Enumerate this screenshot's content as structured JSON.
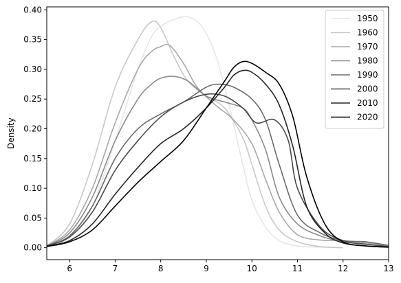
{
  "chart_data": {
    "type": "line",
    "title": "",
    "xlabel": "",
    "ylabel": "Density",
    "xlim": [
      5.5,
      13
    ],
    "ylim": [
      -0.02,
      0.405
    ],
    "xticks": [
      6,
      7,
      8,
      9,
      10,
      11,
      12,
      13
    ],
    "yticks": [
      0.0,
      0.05,
      0.1,
      0.15,
      0.2,
      0.25,
      0.3,
      0.35,
      0.4
    ],
    "grid": false,
    "legend_position": "top-right",
    "series": [
      {
        "name": "1950",
        "color": "#e6e6e6",
        "x": [
          5.5,
          6.0,
          6.5,
          7.0,
          7.5,
          7.8,
          8.0,
          8.3,
          8.6,
          8.9,
          9.2,
          9.5,
          9.8,
          10.0,
          10.3,
          10.6,
          11.0,
          11.5,
          12.0
        ],
        "y": [
          0.003,
          0.02,
          0.07,
          0.18,
          0.3,
          0.355,
          0.372,
          0.384,
          0.388,
          0.372,
          0.325,
          0.24,
          0.14,
          0.08,
          0.035,
          0.012,
          0.003,
          0.001,
          0.0
        ]
      },
      {
        "name": "1960",
        "color": "#c8c8c8",
        "x": [
          5.5,
          6.0,
          6.5,
          7.0,
          7.5,
          7.8,
          8.0,
          8.3,
          8.6,
          9.0,
          9.4,
          9.8,
          10.0,
          10.3,
          10.6,
          11.0,
          11.5,
          12.0
        ],
        "y": [
          0.003,
          0.04,
          0.14,
          0.27,
          0.35,
          0.38,
          0.37,
          0.32,
          0.28,
          0.255,
          0.235,
          0.185,
          0.14,
          0.07,
          0.03,
          0.01,
          0.002,
          0.0
        ]
      },
      {
        "name": "1970",
        "color": "#a8a8a8",
        "x": [
          5.5,
          6.0,
          6.5,
          7.0,
          7.5,
          7.8,
          8.0,
          8.2,
          8.5,
          8.8,
          9.2,
          9.6,
          10.0,
          10.3,
          10.6,
          11.0,
          11.5,
          12.0,
          12.5,
          13.0
        ],
        "y": [
          0.003,
          0.03,
          0.1,
          0.21,
          0.3,
          0.33,
          0.338,
          0.34,
          0.31,
          0.27,
          0.24,
          0.215,
          0.175,
          0.115,
          0.06,
          0.022,
          0.013,
          0.012,
          0.008,
          0.003
        ]
      },
      {
        "name": "1980",
        "color": "#8a8a8a",
        "x": [
          5.5,
          6.0,
          6.5,
          7.0,
          7.5,
          7.8,
          8.0,
          8.3,
          8.6,
          9.0,
          9.4,
          9.8,
          10.0,
          10.3,
          10.6,
          11.0,
          11.5,
          12.0,
          12.5,
          13.0
        ],
        "y": [
          0.003,
          0.025,
          0.085,
          0.18,
          0.25,
          0.275,
          0.285,
          0.288,
          0.28,
          0.255,
          0.245,
          0.235,
          0.215,
          0.165,
          0.085,
          0.04,
          0.02,
          0.01,
          0.006,
          0.002
        ]
      },
      {
        "name": "1990",
        "color": "#6a6a6a",
        "x": [
          5.5,
          6.0,
          6.5,
          7.0,
          7.5,
          8.0,
          8.5,
          9.0,
          9.3,
          9.6,
          10.0,
          10.3,
          10.6,
          11.0,
          11.5,
          12.0,
          12.5,
          13.0
        ],
        "y": [
          0.003,
          0.02,
          0.07,
          0.15,
          0.2,
          0.225,
          0.245,
          0.27,
          0.275,
          0.27,
          0.25,
          0.215,
          0.14,
          0.055,
          0.025,
          0.012,
          0.01,
          0.004
        ]
      },
      {
        "name": "2000",
        "color": "#4a4a4a",
        "x": [
          5.5,
          6.0,
          6.5,
          7.0,
          7.5,
          8.0,
          8.5,
          9.0,
          9.4,
          9.8,
          10.1,
          10.5,
          10.8,
          11.0,
          11.5,
          12.0,
          12.5,
          13.0
        ],
        "y": [
          0.003,
          0.018,
          0.06,
          0.13,
          0.18,
          0.22,
          0.245,
          0.258,
          0.255,
          0.235,
          0.21,
          0.215,
          0.18,
          0.1,
          0.035,
          0.012,
          0.006,
          0.002
        ]
      },
      {
        "name": "2010",
        "color": "#252525",
        "x": [
          5.5,
          6.0,
          6.5,
          7.0,
          7.5,
          8.0,
          8.5,
          9.0,
          9.4,
          9.6,
          9.8,
          10.0,
          10.3,
          10.6,
          10.9,
          11.2,
          11.6,
          12.0,
          12.5,
          13.0
        ],
        "y": [
          0.003,
          0.012,
          0.04,
          0.09,
          0.135,
          0.175,
          0.2,
          0.235,
          0.27,
          0.29,
          0.298,
          0.295,
          0.275,
          0.24,
          0.17,
          0.07,
          0.025,
          0.008,
          0.003,
          0.001
        ]
      },
      {
        "name": "2020",
        "color": "#000000",
        "x": [
          5.5,
          6.0,
          6.5,
          7.0,
          7.5,
          8.0,
          8.5,
          9.0,
          9.4,
          9.6,
          9.8,
          10.0,
          10.3,
          10.6,
          10.9,
          11.2,
          11.6,
          12.0,
          12.5,
          13.0
        ],
        "y": [
          0.002,
          0.01,
          0.03,
          0.07,
          0.11,
          0.145,
          0.18,
          0.235,
          0.28,
          0.303,
          0.313,
          0.31,
          0.295,
          0.275,
          0.22,
          0.12,
          0.04,
          0.01,
          0.003,
          0.001
        ]
      }
    ]
  }
}
